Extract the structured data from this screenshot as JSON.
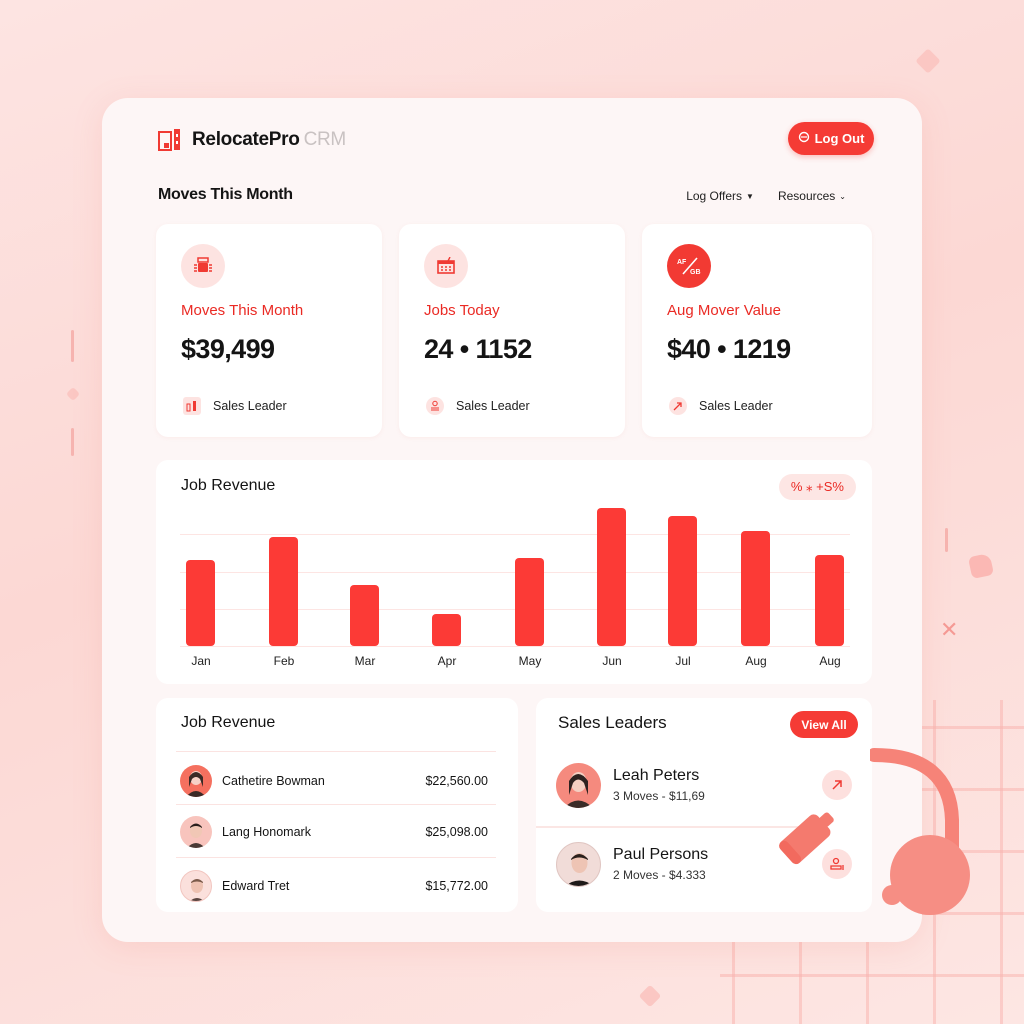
{
  "brand": {
    "name": "RelocatePro",
    "suffix": "CRM"
  },
  "header": {
    "logout_label": "Log Out",
    "section_title": "Moves This Month",
    "nav": [
      {
        "label": "Log Offers"
      },
      {
        "label": "Resources"
      }
    ]
  },
  "stats": [
    {
      "label": "Moves This Month",
      "value": "$39,499",
      "footer": "Sales Leader",
      "icon": "moving-truck-icon"
    },
    {
      "label": "Jobs Today",
      "value": "24 • 1152",
      "footer": "Sales Leader",
      "icon": "calendar-icon"
    },
    {
      "label": "Aug Mover Value",
      "value": "$40 • 1219",
      "footer": "Sales Leader",
      "icon": "ratio-icon",
      "icon_text_a": "AF",
      "icon_text_b": "GB"
    }
  ],
  "chart": {
    "title": "Job Revenue",
    "pill": "%  ⁎ +S%"
  },
  "chart_data": {
    "type": "bar",
    "title": "Job Revenue",
    "categories": [
      "Jan",
      "Feb",
      "Mar",
      "Apr",
      "May",
      "Jun",
      "Jul",
      "Aug",
      "Aug"
    ],
    "values": [
      88,
      112,
      63,
      33,
      90,
      142,
      134,
      118,
      93
    ],
    "xlabel": "",
    "ylabel": "",
    "ylim": [
      0,
      150
    ],
    "grid": true,
    "legend": null,
    "color": "#fc3a36"
  },
  "revenue_list": {
    "title": "Job Revenue",
    "rows": [
      {
        "name": "Cathetire Bowman",
        "amount": "$22,560.00"
      },
      {
        "name": "Lang Honomark",
        "amount": "$25,098.00"
      },
      {
        "name": "Edward Tret",
        "amount": "$15,772.00"
      }
    ]
  },
  "leaders": {
    "title": "Sales Leaders",
    "view_all_label": "View All",
    "rows": [
      {
        "name": "Leah Peters",
        "meta": "3 Moves -  $11,69",
        "action_icon": "arrow-up-right-icon"
      },
      {
        "name": "Paul Persons",
        "meta": "2 Moves - $4.333",
        "action_icon": "person-desk-icon"
      }
    ]
  },
  "colors": {
    "accent": "#f53b35",
    "bar": "#fc3a36",
    "label_red": "#ea2a24",
    "background": "#fcd8d4",
    "panel": "#fdf6f6"
  }
}
